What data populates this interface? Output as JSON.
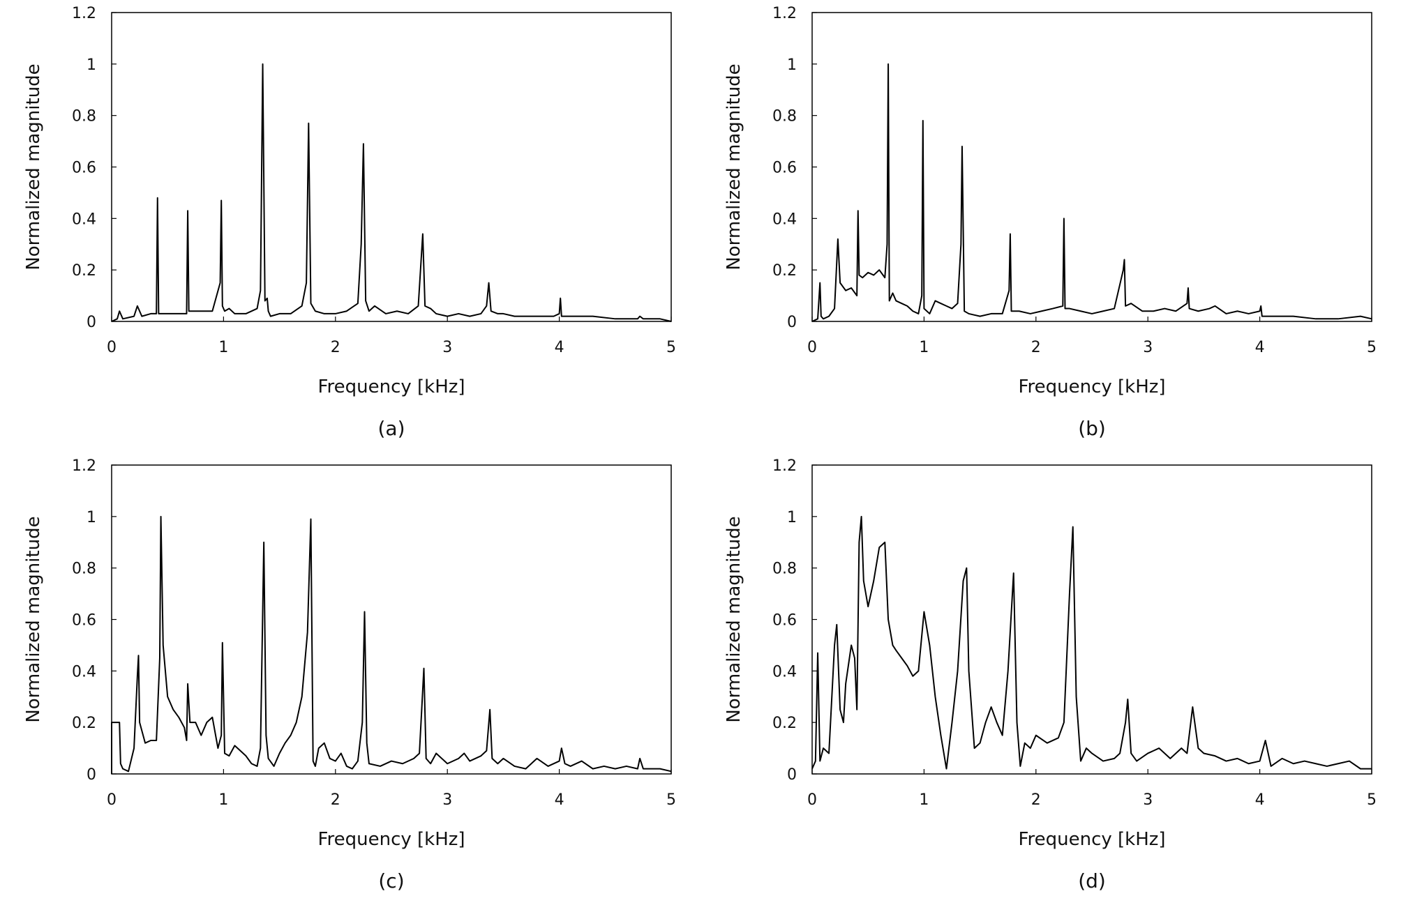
{
  "chart_data": [
    {
      "type": "line",
      "caption": "(a)",
      "xlabel": "Frequency [kHz]",
      "ylabel": "Normalized magnitude",
      "xlim": [
        0,
        5
      ],
      "ylim": [
        0,
        1.2
      ],
      "xticks": [
        "0",
        "1",
        "2",
        "3",
        "4",
        "5"
      ],
      "yticks": [
        "0",
        "0.2",
        "0.4",
        "0.6",
        "0.8",
        "1",
        "1.2"
      ],
      "grid": false,
      "legend": "none",
      "line_color": "#000000",
      "series": [
        {
          "x": [
            0.0,
            0.05,
            0.07,
            0.1,
            0.2,
            0.23,
            0.27,
            0.35,
            0.4,
            0.41,
            0.42,
            0.5,
            0.6,
            0.67,
            0.68,
            0.69,
            0.8,
            0.9,
            0.97,
            0.98,
            0.99,
            1.01,
            1.05,
            1.1,
            1.2,
            1.3,
            1.33,
            1.35,
            1.37,
            1.39,
            1.4,
            1.42,
            1.5,
            1.6,
            1.7,
            1.74,
            1.76,
            1.78,
            1.82,
            1.9,
            2.0,
            2.1,
            2.2,
            2.23,
            2.25,
            2.27,
            2.3,
            2.35,
            2.45,
            2.55,
            2.65,
            2.74,
            2.77,
            2.78,
            2.8,
            2.85,
            2.9,
            3.0,
            3.1,
            3.2,
            3.3,
            3.35,
            3.37,
            3.39,
            3.45,
            3.5,
            3.6,
            3.8,
            3.95,
            4.0,
            4.01,
            4.02,
            4.1,
            4.3,
            4.5,
            4.7,
            4.72,
            4.75,
            4.9,
            5.0
          ],
          "y": [
            0.0,
            0.01,
            0.04,
            0.01,
            0.02,
            0.06,
            0.02,
            0.03,
            0.03,
            0.48,
            0.03,
            0.03,
            0.03,
            0.03,
            0.43,
            0.04,
            0.04,
            0.04,
            0.15,
            0.47,
            0.06,
            0.04,
            0.05,
            0.03,
            0.03,
            0.05,
            0.12,
            1.0,
            0.08,
            0.09,
            0.04,
            0.02,
            0.03,
            0.03,
            0.06,
            0.15,
            0.77,
            0.07,
            0.04,
            0.03,
            0.03,
            0.04,
            0.07,
            0.3,
            0.69,
            0.08,
            0.04,
            0.06,
            0.03,
            0.04,
            0.03,
            0.06,
            0.27,
            0.34,
            0.06,
            0.05,
            0.03,
            0.02,
            0.03,
            0.02,
            0.03,
            0.06,
            0.15,
            0.04,
            0.03,
            0.03,
            0.02,
            0.02,
            0.02,
            0.03,
            0.09,
            0.02,
            0.02,
            0.02,
            0.01,
            0.01,
            0.02,
            0.01,
            0.01,
            0.0
          ]
        }
      ]
    },
    {
      "type": "line",
      "caption": "(b)",
      "xlabel": "Frequency [kHz]",
      "ylabel": "Normalized magnitude",
      "xlim": [
        0,
        5
      ],
      "ylim": [
        0,
        1.2
      ],
      "xticks": [
        "0",
        "1",
        "2",
        "3",
        "4",
        "5"
      ],
      "yticks": [
        "0",
        "0.2",
        "0.4",
        "0.6",
        "0.8",
        "1",
        "1.2"
      ],
      "grid": false,
      "legend": "none",
      "line_color": "#000000",
      "series": [
        {
          "x": [
            0.0,
            0.05,
            0.07,
            0.08,
            0.1,
            0.15,
            0.2,
            0.23,
            0.25,
            0.3,
            0.35,
            0.4,
            0.41,
            0.42,
            0.45,
            0.5,
            0.55,
            0.6,
            0.65,
            0.67,
            0.68,
            0.69,
            0.72,
            0.75,
            0.8,
            0.85,
            0.9,
            0.95,
            0.98,
            0.99,
            1.0,
            1.05,
            1.1,
            1.15,
            1.2,
            1.25,
            1.3,
            1.33,
            1.34,
            1.36,
            1.4,
            1.5,
            1.6,
            1.7,
            1.76,
            1.77,
            1.78,
            1.85,
            1.95,
            2.05,
            2.15,
            2.24,
            2.25,
            2.26,
            2.3,
            2.4,
            2.5,
            2.6,
            2.7,
            2.78,
            2.79,
            2.8,
            2.85,
            2.95,
            3.05,
            3.15,
            3.25,
            3.35,
            3.36,
            3.37,
            3.45,
            3.55,
            3.6,
            3.7,
            3.8,
            3.9,
            4.0,
            4.01,
            4.02,
            4.1,
            4.3,
            4.5,
            4.7,
            4.9,
            5.0
          ],
          "y": [
            0.0,
            0.01,
            0.15,
            0.02,
            0.01,
            0.02,
            0.05,
            0.32,
            0.15,
            0.12,
            0.13,
            0.1,
            0.43,
            0.18,
            0.17,
            0.19,
            0.18,
            0.2,
            0.17,
            0.3,
            1.0,
            0.08,
            0.11,
            0.08,
            0.07,
            0.06,
            0.04,
            0.03,
            0.1,
            0.78,
            0.05,
            0.03,
            0.08,
            0.07,
            0.06,
            0.05,
            0.07,
            0.3,
            0.68,
            0.04,
            0.03,
            0.02,
            0.03,
            0.03,
            0.12,
            0.34,
            0.04,
            0.04,
            0.03,
            0.04,
            0.05,
            0.06,
            0.4,
            0.05,
            0.05,
            0.04,
            0.03,
            0.04,
            0.05,
            0.2,
            0.24,
            0.06,
            0.07,
            0.04,
            0.04,
            0.05,
            0.04,
            0.07,
            0.13,
            0.05,
            0.04,
            0.05,
            0.06,
            0.03,
            0.04,
            0.03,
            0.04,
            0.06,
            0.02,
            0.02,
            0.02,
            0.01,
            0.01,
            0.02,
            0.01
          ]
        }
      ]
    },
    {
      "type": "line",
      "caption": "(c)",
      "xlabel": "Frequency [kHz]",
      "ylabel": "Normalized magnitude",
      "xlim": [
        0,
        5
      ],
      "ylim": [
        0,
        1.2
      ],
      "xticks": [
        "0",
        "1",
        "2",
        "3",
        "4",
        "5"
      ],
      "yticks": [
        "0",
        "0.2",
        "0.4",
        "0.6",
        "0.8",
        "1",
        "1.2"
      ],
      "grid": false,
      "legend": "none",
      "line_color": "#000000",
      "series": [
        {
          "x": [
            0.0,
            0.0,
            0.07,
            0.08,
            0.1,
            0.15,
            0.2,
            0.23,
            0.24,
            0.25,
            0.3,
            0.35,
            0.4,
            0.43,
            0.44,
            0.46,
            0.5,
            0.55,
            0.6,
            0.65,
            0.67,
            0.68,
            0.7,
            0.75,
            0.8,
            0.85,
            0.9,
            0.95,
            0.98,
            0.99,
            1.01,
            1.05,
            1.1,
            1.15,
            1.2,
            1.25,
            1.3,
            1.33,
            1.36,
            1.38,
            1.4,
            1.45,
            1.5,
            1.55,
            1.6,
            1.65,
            1.7,
            1.75,
            1.78,
            1.8,
            1.82,
            1.85,
            1.9,
            1.95,
            2.0,
            2.05,
            2.1,
            2.15,
            2.2,
            2.24,
            2.26,
            2.28,
            2.3,
            2.4,
            2.5,
            2.6,
            2.7,
            2.75,
            2.79,
            2.81,
            2.85,
            2.9,
            3.0,
            3.1,
            3.15,
            3.2,
            3.3,
            3.35,
            3.38,
            3.4,
            3.45,
            3.5,
            3.6,
            3.7,
            3.8,
            3.9,
            4.0,
            4.02,
            4.05,
            4.1,
            4.2,
            4.3,
            4.4,
            4.5,
            4.6,
            4.7,
            4.72,
            4.75,
            4.8,
            4.9,
            5.0
          ],
          "y": [
            0.0,
            0.2,
            0.2,
            0.04,
            0.02,
            0.01,
            0.1,
            0.38,
            0.46,
            0.2,
            0.12,
            0.13,
            0.13,
            0.45,
            1.0,
            0.5,
            0.3,
            0.25,
            0.22,
            0.18,
            0.13,
            0.35,
            0.2,
            0.2,
            0.15,
            0.2,
            0.22,
            0.1,
            0.15,
            0.51,
            0.08,
            0.07,
            0.11,
            0.09,
            0.07,
            0.04,
            0.03,
            0.1,
            0.9,
            0.15,
            0.06,
            0.03,
            0.08,
            0.12,
            0.15,
            0.2,
            0.3,
            0.55,
            0.99,
            0.05,
            0.03,
            0.1,
            0.12,
            0.06,
            0.05,
            0.08,
            0.03,
            0.02,
            0.05,
            0.2,
            0.63,
            0.12,
            0.04,
            0.03,
            0.05,
            0.04,
            0.06,
            0.08,
            0.41,
            0.06,
            0.04,
            0.08,
            0.04,
            0.06,
            0.08,
            0.05,
            0.07,
            0.09,
            0.25,
            0.06,
            0.04,
            0.06,
            0.03,
            0.02,
            0.06,
            0.03,
            0.05,
            0.1,
            0.04,
            0.03,
            0.05,
            0.02,
            0.03,
            0.02,
            0.03,
            0.02,
            0.06,
            0.02,
            0.02,
            0.02,
            0.01
          ]
        }
      ]
    },
    {
      "type": "line",
      "caption": "(d)",
      "xlabel": "Frequency [kHz]",
      "ylabel": "Normalized magnitude",
      "xlim": [
        0,
        5
      ],
      "ylim": [
        0,
        1.2
      ],
      "xticks": [
        "0",
        "1",
        "2",
        "3",
        "4",
        "5"
      ],
      "yticks": [
        "0",
        "0.2",
        "0.4",
        "0.6",
        "0.8",
        "1",
        "1.2"
      ],
      "grid": false,
      "legend": "none",
      "line_color": "#000000",
      "series": [
        {
          "x": [
            0.0,
            0.03,
            0.05,
            0.07,
            0.1,
            0.15,
            0.2,
            0.22,
            0.25,
            0.28,
            0.3,
            0.35,
            0.38,
            0.4,
            0.42,
            0.44,
            0.46,
            0.5,
            0.55,
            0.6,
            0.65,
            0.68,
            0.7,
            0.72,
            0.75,
            0.8,
            0.85,
            0.9,
            0.95,
            1.0,
            1.05,
            1.1,
            1.15,
            1.2,
            1.25,
            1.3,
            1.35,
            1.38,
            1.4,
            1.45,
            1.5,
            1.55,
            1.6,
            1.65,
            1.7,
            1.75,
            1.8,
            1.83,
            1.86,
            1.9,
            1.95,
            2.0,
            2.1,
            2.2,
            2.25,
            2.3,
            2.33,
            2.36,
            2.4,
            2.45,
            2.5,
            2.6,
            2.7,
            2.75,
            2.8,
            2.82,
            2.85,
            2.9,
            3.0,
            3.1,
            3.2,
            3.3,
            3.35,
            3.4,
            3.45,
            3.5,
            3.6,
            3.7,
            3.8,
            3.9,
            4.0,
            4.05,
            4.1,
            4.2,
            4.3,
            4.4,
            4.5,
            4.6,
            4.7,
            4.8,
            4.9,
            5.0
          ],
          "y": [
            0.02,
            0.05,
            0.47,
            0.05,
            0.1,
            0.08,
            0.5,
            0.58,
            0.25,
            0.2,
            0.35,
            0.5,
            0.45,
            0.25,
            0.9,
            1.0,
            0.75,
            0.65,
            0.75,
            0.88,
            0.9,
            0.6,
            0.55,
            0.5,
            0.48,
            0.45,
            0.42,
            0.38,
            0.4,
            0.63,
            0.5,
            0.3,
            0.15,
            0.02,
            0.2,
            0.4,
            0.75,
            0.8,
            0.4,
            0.1,
            0.12,
            0.2,
            0.26,
            0.2,
            0.15,
            0.4,
            0.78,
            0.2,
            0.03,
            0.12,
            0.1,
            0.15,
            0.12,
            0.14,
            0.2,
            0.7,
            0.96,
            0.3,
            0.05,
            0.1,
            0.08,
            0.05,
            0.06,
            0.08,
            0.2,
            0.29,
            0.08,
            0.05,
            0.08,
            0.1,
            0.06,
            0.1,
            0.08,
            0.26,
            0.1,
            0.08,
            0.07,
            0.05,
            0.06,
            0.04,
            0.05,
            0.13,
            0.03,
            0.06,
            0.04,
            0.05,
            0.04,
            0.03,
            0.04,
            0.05,
            0.02,
            0.02
          ]
        }
      ]
    }
  ]
}
